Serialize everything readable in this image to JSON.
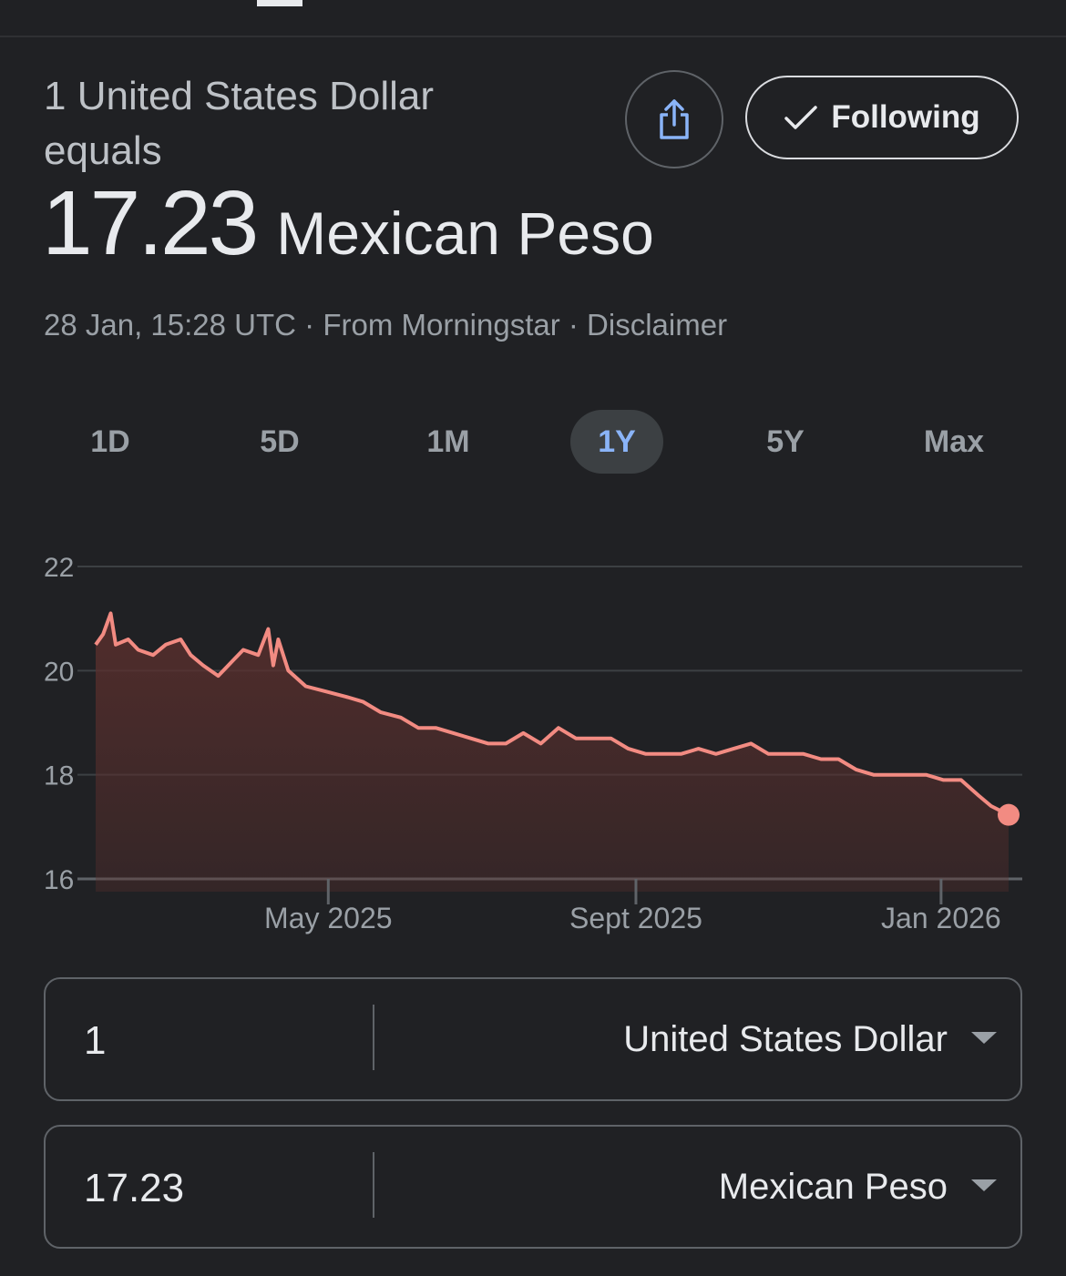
{
  "header": {
    "label": "1 United States Dollar equals",
    "rate_value": "17.23",
    "rate_currency": "Mexican Peso"
  },
  "actions": {
    "share_icon": "share-icon",
    "following_label": "Following",
    "following_icon": "check-icon"
  },
  "meta": {
    "timestamp": "28 Jan, 15:28 UTC",
    "separator": " · ",
    "source": "From Morningstar",
    "disclaimer": "Disclaimer"
  },
  "range_tabs": [
    {
      "label": "1D",
      "active": false
    },
    {
      "label": "5D",
      "active": false
    },
    {
      "label": "1M",
      "active": false
    },
    {
      "label": "1Y",
      "active": true
    },
    {
      "label": "5Y",
      "active": false
    },
    {
      "label": "Max",
      "active": false
    }
  ],
  "colors": {
    "line": "#f28b82",
    "area_top": "#5a2f2d",
    "active_tab_text": "#8ab4f8"
  },
  "chart_data": {
    "type": "area",
    "xlabel": "",
    "ylabel": "",
    "ylim": [
      16,
      22
    ],
    "yticks": [
      16,
      18,
      20,
      22
    ],
    "xticks": [
      {
        "label": "May 2025",
        "at": "2025-05-01"
      },
      {
        "label": "Sept 2025",
        "at": "2025-09-01"
      },
      {
        "label": "Jan 2026",
        "at": "2026-01-01"
      }
    ],
    "grid": true,
    "series": [
      {
        "x": [
          "2025-01-28",
          "2025-01-31",
          "2025-02-03",
          "2025-02-05",
          "2025-02-10",
          "2025-02-14",
          "2025-02-20",
          "2025-02-25",
          "2025-03-03",
          "2025-03-07",
          "2025-03-12",
          "2025-03-18",
          "2025-03-24",
          "2025-03-28",
          "2025-04-03",
          "2025-04-07",
          "2025-04-09",
          "2025-04-11",
          "2025-04-15",
          "2025-04-22",
          "2025-04-30",
          "2025-05-08",
          "2025-05-15",
          "2025-05-22",
          "2025-05-30",
          "2025-06-06",
          "2025-06-13",
          "2025-06-20",
          "2025-06-27",
          "2025-07-04",
          "2025-07-11",
          "2025-07-18",
          "2025-07-25",
          "2025-08-01",
          "2025-08-08",
          "2025-08-15",
          "2025-08-22",
          "2025-08-29",
          "2025-09-05",
          "2025-09-12",
          "2025-09-19",
          "2025-09-26",
          "2025-10-03",
          "2025-10-10",
          "2025-10-17",
          "2025-10-24",
          "2025-10-31",
          "2025-11-07",
          "2025-11-14",
          "2025-11-21",
          "2025-11-28",
          "2025-12-05",
          "2025-12-12",
          "2025-12-19",
          "2025-12-26",
          "2026-01-02",
          "2026-01-09",
          "2026-01-16",
          "2026-01-21",
          "2026-01-28"
        ],
        "values": [
          20.5,
          20.7,
          21.1,
          20.5,
          20.6,
          20.4,
          20.3,
          20.5,
          20.6,
          20.3,
          20.1,
          19.9,
          20.2,
          20.4,
          20.3,
          20.8,
          20.1,
          20.6,
          20.0,
          19.7,
          19.6,
          19.5,
          19.4,
          19.2,
          19.1,
          18.9,
          18.9,
          18.8,
          18.7,
          18.6,
          18.6,
          18.8,
          18.6,
          18.9,
          18.7,
          18.7,
          18.7,
          18.5,
          18.4,
          18.4,
          18.4,
          18.5,
          18.4,
          18.5,
          18.6,
          18.4,
          18.4,
          18.4,
          18.3,
          18.3,
          18.1,
          18.0,
          18.0,
          18.0,
          18.0,
          17.9,
          17.9,
          17.6,
          17.4,
          17.23
        ]
      }
    ]
  },
  "converter": [
    {
      "amount": "1",
      "currency": "United States Dollar"
    },
    {
      "amount": "17.23",
      "currency": "Mexican Peso"
    }
  ]
}
